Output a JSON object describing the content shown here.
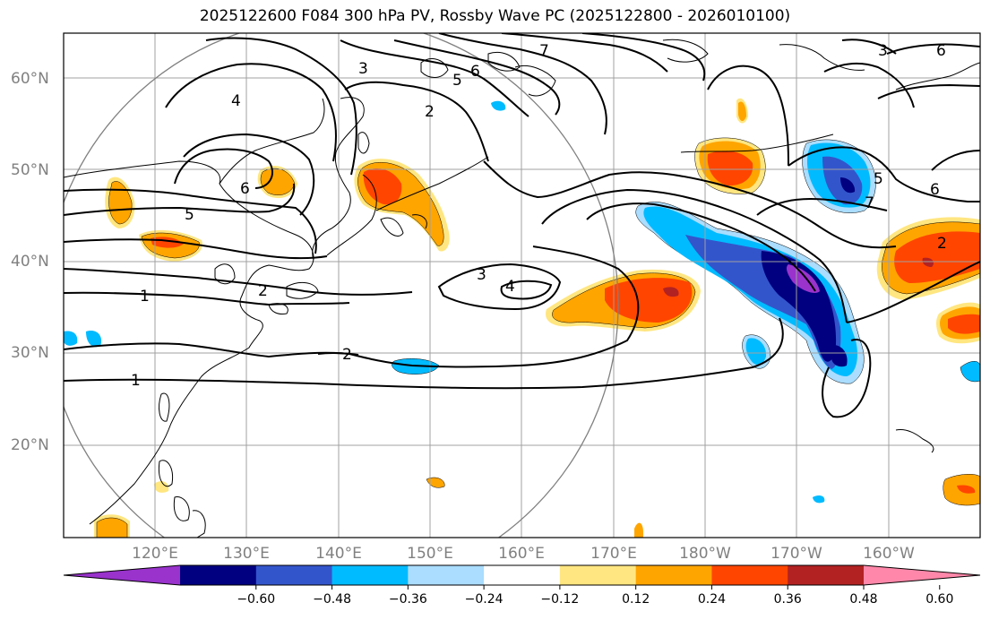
{
  "title": "2025122600 F084 300 hPa PV, Rossby Wave PC (2025122800 - 2026010100)",
  "lat_labels": [
    "20°N",
    "30°N",
    "40°N",
    "50°N",
    "60°N"
  ],
  "lon_labels": [
    "120°E",
    "130°E",
    "140°E",
    "150°E",
    "160°E",
    "170°E",
    "180°W",
    "170°W",
    "160°W"
  ],
  "contour_labels": [
    "1",
    "1",
    "2",
    "2",
    "2",
    "2",
    "3",
    "3",
    "3",
    "4",
    "4",
    "5",
    "5",
    "5",
    "6",
    "6",
    "6",
    "6",
    "7",
    "7"
  ],
  "colorbar": {
    "ticks": [
      "−0.60",
      "−0.48",
      "−0.36",
      "−0.24",
      "−0.12",
      "0.12",
      "0.24",
      "0.36",
      "0.48",
      "0.60"
    ],
    "colors": [
      "#9933cc",
      "#000080",
      "#3355cc",
      "#00bbff",
      "#aaddff",
      "#ffffff",
      "#ffe680",
      "#ffa500",
      "#ff4500",
      "#b22222",
      "#ff88aa"
    ]
  }
}
